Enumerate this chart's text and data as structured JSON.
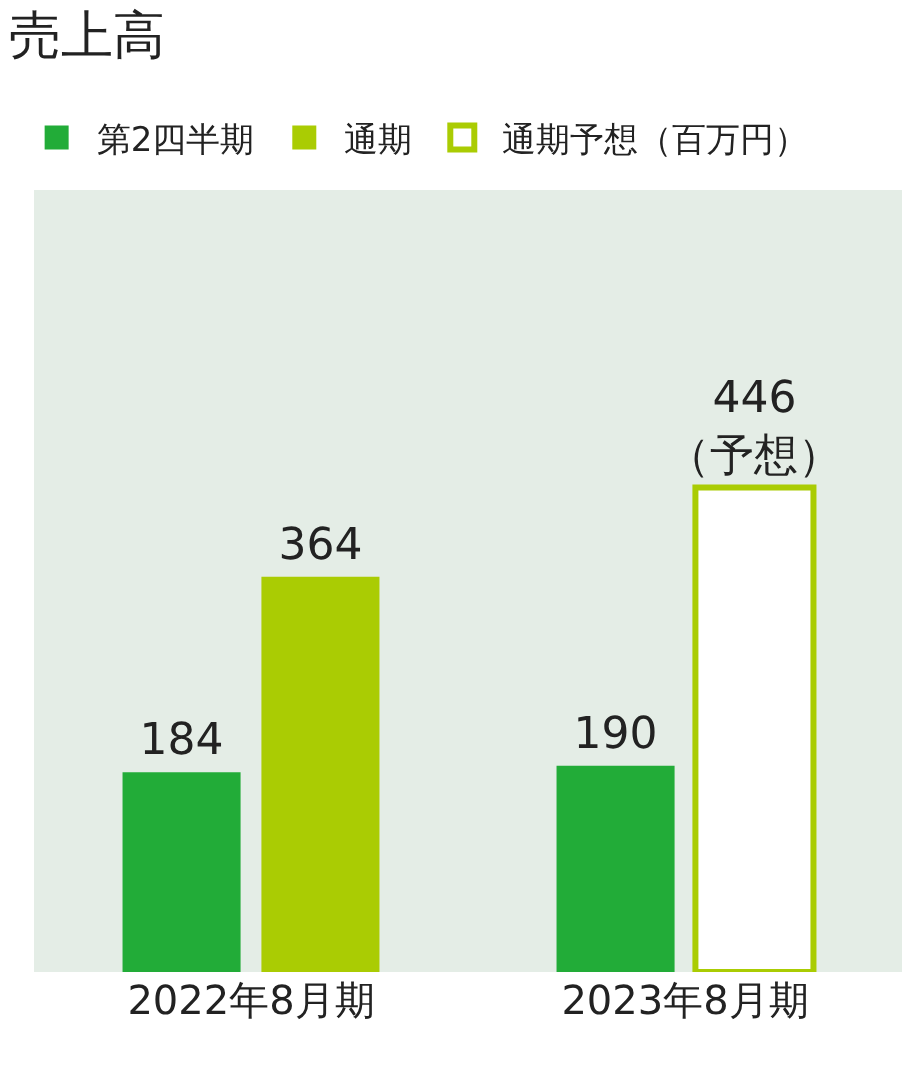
{
  "chart_data": {
    "type": "bar",
    "title": "売上高",
    "categories": [
      "2022年8月期",
      "2023年8月期"
    ],
    "series": [
      {
        "name": "第2四半期",
        "color": "#22ac38",
        "values": [
          184,
          190
        ],
        "value_labels": [
          "184",
          "190"
        ]
      },
      {
        "name": "通期",
        "color": "#aacc03",
        "values": [
          364,
          null
        ],
        "value_labels": [
          "364",
          null
        ]
      },
      {
        "name": "通期予想（百万円）",
        "color": "#aacc03",
        "colors": [
          "#ffffff",
          "#ffffff"
        ],
        "values": [
          null,
          446
        ],
        "value_labels": [
          null,
          "446\n（予想）"
        ]
      }
    ],
    "ylim": [
      0,
      720
    ],
    "tick_labels": "x",
    "grid": false,
    "legend": "top left"
  }
}
